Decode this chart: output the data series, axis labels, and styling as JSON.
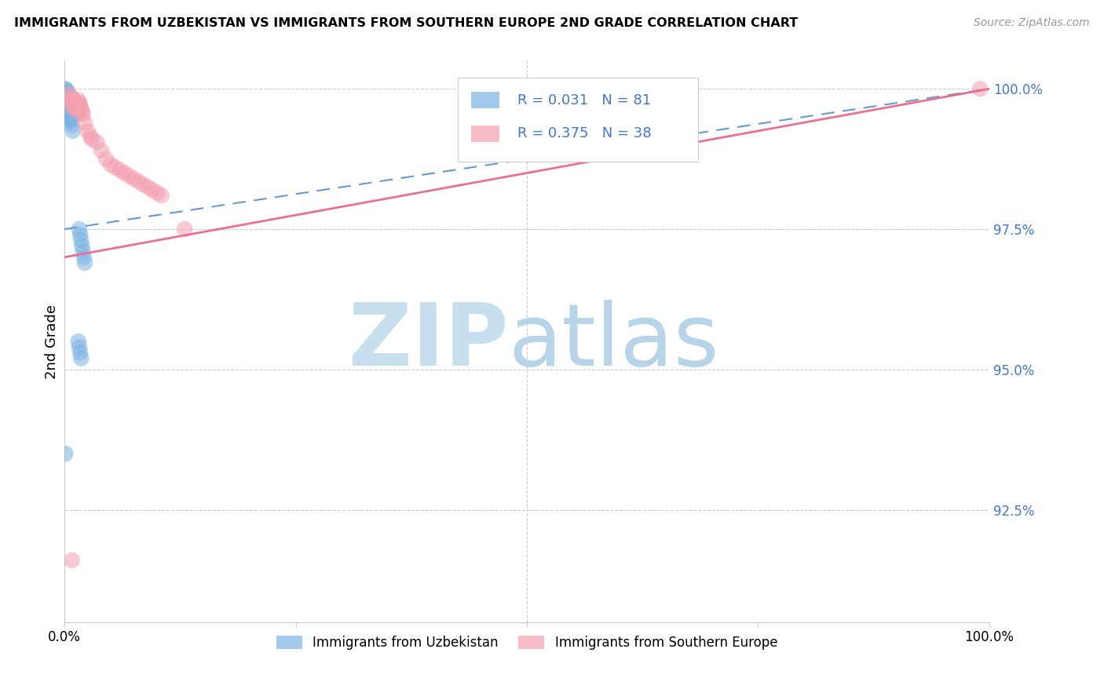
{
  "title": "IMMIGRANTS FROM UZBEKISTAN VS IMMIGRANTS FROM SOUTHERN EUROPE 2ND GRADE CORRELATION CHART",
  "source": "Source: ZipAtlas.com",
  "ylabel": "2nd Grade",
  "legend_label1": "Immigrants from Uzbekistan",
  "legend_label2": "Immigrants from Southern Europe",
  "R1": "0.031",
  "N1": "81",
  "R2": "0.375",
  "N2": "38",
  "color1": "#7EB4E3",
  "color2": "#F4A0B0",
  "line1_color": "#6699CC",
  "line2_color": "#E87090",
  "watermark_zip_color": "#C8DFF0",
  "watermark_atlas_color": "#B8D4E8",
  "xlim": [
    0.0,
    1.0
  ],
  "ylim": [
    0.905,
    1.005
  ],
  "yticks": [
    0.925,
    0.95,
    0.975,
    1.0
  ],
  "ytick_labels": [
    "92.5%",
    "95.0%",
    "97.5%",
    "100.0%"
  ],
  "blue_line_x0": 0.0,
  "blue_line_y0": 0.975,
  "blue_line_x1": 1.0,
  "blue_line_y1": 1.0,
  "pink_line_x0": 0.0,
  "pink_line_y0": 0.97,
  "pink_line_x1": 1.0,
  "pink_line_y1": 1.0,
  "scatter1_x": [
    0.001,
    0.001,
    0.002,
    0.002,
    0.002,
    0.002,
    0.002,
    0.002,
    0.003,
    0.003,
    0.003,
    0.003,
    0.003,
    0.003,
    0.004,
    0.004,
    0.004,
    0.004,
    0.005,
    0.005,
    0.005,
    0.005,
    0.006,
    0.006,
    0.006,
    0.007,
    0.007,
    0.007,
    0.008,
    0.008,
    0.008,
    0.009,
    0.009,
    0.009,
    0.01,
    0.01,
    0.01,
    0.011,
    0.011,
    0.012,
    0.012,
    0.013,
    0.013,
    0.014,
    0.015,
    0.015,
    0.016,
    0.017,
    0.018,
    0.019,
    0.02,
    0.021,
    0.022,
    0.003,
    0.004,
    0.005,
    0.006,
    0.007,
    0.008,
    0.009,
    0.001,
    0.002,
    0.003,
    0.004,
    0.005,
    0.002,
    0.003,
    0.004,
    0.005,
    0.006,
    0.001,
    0.002,
    0.003,
    0.001,
    0.002,
    0.001,
    0.015,
    0.016,
    0.017,
    0.018,
    0.001
  ],
  "scatter1_y": [
    1.0,
    0.9995,
    0.9998,
    0.9995,
    0.9992,
    0.999,
    0.9988,
    0.9985,
    0.9995,
    0.999,
    0.9985,
    0.998,
    0.9975,
    0.997,
    0.999,
    0.998,
    0.997,
    0.996,
    0.998,
    0.997,
    0.996,
    0.995,
    0.998,
    0.997,
    0.996,
    0.997,
    0.996,
    0.995,
    0.997,
    0.996,
    0.9955,
    0.9975,
    0.997,
    0.996,
    0.997,
    0.996,
    0.9955,
    0.9965,
    0.996,
    0.997,
    0.996,
    0.9965,
    0.9955,
    0.9965,
    0.9965,
    0.996,
    0.975,
    0.974,
    0.973,
    0.972,
    0.971,
    0.97,
    0.969,
    0.9985,
    0.9975,
    0.9965,
    0.9955,
    0.9945,
    0.9935,
    0.9925,
    0.9988,
    0.9978,
    0.9968,
    0.9958,
    0.9948,
    0.9982,
    0.9972,
    0.9962,
    0.9952,
    0.9942,
    0.9986,
    0.9976,
    0.9966,
    0.9984,
    0.9974,
    0.9983,
    0.955,
    0.954,
    0.953,
    0.952,
    0.935
  ],
  "scatter2_x": [
    0.005,
    0.006,
    0.007,
    0.008,
    0.009,
    0.01,
    0.011,
    0.012,
    0.013,
    0.014,
    0.015,
    0.016,
    0.017,
    0.018,
    0.019,
    0.02,
    0.022,
    0.025,
    0.028,
    0.03,
    0.035,
    0.04,
    0.045,
    0.05,
    0.055,
    0.06,
    0.065,
    0.07,
    0.075,
    0.08,
    0.085,
    0.09,
    0.095,
    0.1,
    0.105,
    0.13,
    0.99,
    0.008
  ],
  "scatter2_y": [
    0.999,
    0.998,
    0.997,
    0.9985,
    0.998,
    0.9975,
    0.997,
    0.9965,
    0.9975,
    0.996,
    0.998,
    0.9975,
    0.997,
    0.9965,
    0.996,
    0.9955,
    0.994,
    0.9925,
    0.9915,
    0.991,
    0.9905,
    0.989,
    0.9875,
    0.9865,
    0.986,
    0.9855,
    0.985,
    0.9845,
    0.984,
    0.9835,
    0.983,
    0.9825,
    0.982,
    0.9815,
    0.981,
    0.975,
    1.0,
    0.916
  ]
}
